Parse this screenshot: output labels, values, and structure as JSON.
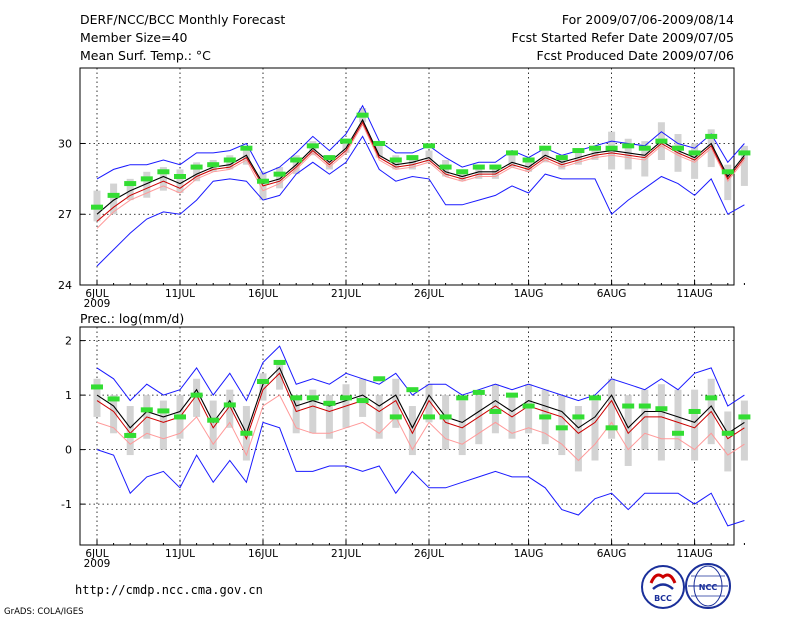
{
  "header": {
    "title": "DERF/NCC/BCC Monthly Forecast",
    "member_size": "Member Size=40",
    "for_range": "For 2009/07/06-2009/08/14",
    "fcst_started": "Fcst Started Refer Date 2009/07/05",
    "fcst_produced": "Fcst Produced Date 2009/07/06"
  },
  "footer": {
    "url": "http://cmdp.ncc.cma.gov.cn",
    "grads": "GrADS: COLA/IGES",
    "logo_bcc": "BCC",
    "logo_ncc": "NCC"
  },
  "colors": {
    "envelope": "#1a1aff",
    "mean": "#000000",
    "median": "#cc0000",
    "pink": "#ff9999",
    "box": "#d3d3d3",
    "marker": "#33dd33",
    "grid": "#000000"
  },
  "chart_data": [
    {
      "type": "line",
      "title": "Mean Surf. Temp.: °C",
      "x_tick_labels": [
        "6JUL",
        "11JUL",
        "16JUL",
        "21JUL",
        "26JUL",
        "1AUG",
        "6AUG",
        "11AUG"
      ],
      "x_tick_days": [
        1,
        6,
        11,
        16,
        21,
        27,
        32,
        37
      ],
      "x_year_label": "2009",
      "ylim": [
        24,
        33.2
      ],
      "yticks": [
        24,
        27,
        30
      ],
      "x_days": [
        1,
        2,
        3,
        4,
        5,
        6,
        7,
        8,
        9,
        10,
        11,
        12,
        13,
        14,
        15,
        16,
        17,
        18,
        19,
        20,
        21,
        22,
        23,
        24,
        25,
        26,
        27,
        28,
        29,
        30,
        31,
        32,
        33,
        34,
        35,
        36,
        37,
        38,
        39,
        40
      ],
      "series": [
        {
          "name": "max",
          "values": [
            28.5,
            28.9,
            29.1,
            29.1,
            29.3,
            29.1,
            29.6,
            29.6,
            29.7,
            30.0,
            28.7,
            29.0,
            29.6,
            30.3,
            29.7,
            30.4,
            31.6,
            30.1,
            29.6,
            29.6,
            29.9,
            29.4,
            29.0,
            29.2,
            29.2,
            29.7,
            29.4,
            29.8,
            29.5,
            29.7,
            29.9,
            30.1,
            30.0,
            29.9,
            30.5,
            30.0,
            29.8,
            30.4,
            29.2,
            30.0
          ]
        },
        {
          "name": "mean",
          "values": [
            27.0,
            27.6,
            28.0,
            28.3,
            28.6,
            28.3,
            28.7,
            29.0,
            29.1,
            29.5,
            28.3,
            28.5,
            29.1,
            29.8,
            29.2,
            29.8,
            31.0,
            29.5,
            29.1,
            29.2,
            29.4,
            28.8,
            28.6,
            28.8,
            28.8,
            29.2,
            29.0,
            29.5,
            29.2,
            29.4,
            29.6,
            29.7,
            29.6,
            29.5,
            30.1,
            29.7,
            29.4,
            30.0,
            28.6,
            29.5
          ]
        },
        {
          "name": "median",
          "values": [
            26.7,
            27.3,
            27.8,
            28.1,
            28.4,
            28.1,
            28.6,
            28.9,
            29.0,
            29.4,
            28.2,
            28.4,
            29.0,
            29.7,
            29.1,
            29.7,
            30.9,
            29.4,
            29.0,
            29.1,
            29.3,
            28.7,
            28.5,
            28.7,
            28.7,
            29.1,
            28.9,
            29.4,
            29.1,
            29.3,
            29.5,
            29.6,
            29.5,
            29.4,
            30.0,
            29.6,
            29.3,
            29.9,
            28.5,
            29.4
          ]
        },
        {
          "name": "pink",
          "values": [
            26.4,
            27.1,
            27.6,
            27.9,
            28.2,
            27.9,
            28.5,
            28.8,
            28.9,
            29.3,
            28.0,
            28.3,
            28.9,
            29.6,
            29.0,
            29.6,
            30.8,
            29.3,
            28.9,
            29.0,
            29.2,
            28.6,
            28.4,
            28.6,
            28.6,
            29.0,
            28.8,
            29.3,
            29.0,
            29.2,
            29.4,
            29.5,
            29.4,
            29.3,
            29.9,
            29.5,
            29.2,
            29.8,
            28.4,
            29.3
          ]
        },
        {
          "name": "min",
          "values": [
            24.8,
            25.5,
            26.2,
            26.8,
            27.1,
            27.0,
            27.6,
            28.4,
            28.5,
            28.4,
            27.6,
            27.8,
            28.7,
            29.2,
            28.7,
            29.2,
            30.3,
            28.9,
            28.4,
            28.6,
            28.5,
            27.4,
            27.4,
            27.6,
            27.8,
            28.2,
            27.9,
            28.7,
            28.5,
            28.5,
            28.5,
            27.0,
            27.6,
            28.1,
            28.6,
            28.3,
            27.8,
            28.5,
            27.0,
            27.4
          ]
        }
      ],
      "box_low": [
        26.7,
        27.0,
        27.6,
        27.7,
        28.0,
        27.9,
        28.4,
        28.8,
        28.9,
        29.1,
        27.6,
        28.1,
        28.7,
        29.5,
        28.9,
        29.6,
        30.9,
        29.4,
        28.9,
        28.9,
        29.2,
        28.6,
        28.4,
        28.5,
        28.5,
        29.0,
        28.8,
        29.2,
        28.9,
        29.1,
        29.3,
        28.9,
        28.9,
        28.6,
        29.3,
        28.8,
        28.5,
        29.0,
        27.6,
        28.2
      ],
      "box_high": [
        28.0,
        28.3,
        28.5,
        28.8,
        29.0,
        28.9,
        29.2,
        29.3,
        29.5,
        29.8,
        28.8,
        29.0,
        29.5,
        30.1,
        29.5,
        30.2,
        31.5,
        30.0,
        29.5,
        29.5,
        29.7,
        29.3,
        28.9,
        29.1,
        29.1,
        29.5,
        29.3,
        29.7,
        29.4,
        29.6,
        29.8,
        30.5,
        30.2,
        30.1,
        30.9,
        30.4,
        30.0,
        30.6,
        29.1,
        29.9
      ],
      "markers": [
        27.3,
        27.8,
        28.3,
        28.5,
        28.8,
        28.6,
        29.0,
        29.1,
        29.3,
        29.8,
        28.4,
        28.7,
        29.3,
        29.9,
        29.4,
        30.1,
        31.2,
        30.0,
        29.3,
        29.4,
        29.9,
        29.0,
        28.8,
        29.0,
        29.0,
        29.6,
        29.3,
        29.8,
        29.4,
        29.7,
        29.8,
        29.8,
        29.9,
        29.8,
        30.1,
        29.8,
        29.6,
        30.3,
        28.8,
        29.6
      ]
    },
    {
      "type": "line",
      "title": "Prec.: log(mm/d)",
      "x_tick_labels": [
        "6JUL",
        "11JUL",
        "16JUL",
        "21JUL",
        "26JUL",
        "1AUG",
        "6AUG",
        "11AUG"
      ],
      "x_tick_days": [
        1,
        6,
        11,
        16,
        21,
        27,
        32,
        37
      ],
      "x_year_label": "2009",
      "ylim": [
        -1.75,
        2.25
      ],
      "yticks": [
        -1,
        0,
        1,
        2
      ],
      "x_days": [
        1,
        2,
        3,
        4,
        5,
        6,
        7,
        8,
        9,
        10,
        11,
        12,
        13,
        14,
        15,
        16,
        17,
        18,
        19,
        20,
        21,
        22,
        23,
        24,
        25,
        26,
        27,
        28,
        29,
        30,
        31,
        32,
        33,
        34,
        35,
        36,
        37,
        38,
        39,
        40
      ],
      "series": [
        {
          "name": "max",
          "values": [
            1.5,
            1.3,
            0.9,
            1.2,
            1.0,
            1.1,
            1.5,
            1.0,
            1.4,
            0.9,
            1.6,
            1.9,
            1.2,
            1.3,
            1.2,
            1.4,
            1.3,
            1.2,
            1.4,
            1.0,
            1.2,
            1.2,
            1.0,
            1.1,
            1.2,
            1.1,
            1.2,
            1.1,
            1.0,
            0.9,
            1.0,
            1.3,
            1.2,
            1.1,
            1.3,
            1.1,
            1.4,
            1.5,
            0.8,
            1.0
          ]
        },
        {
          "name": "mean",
          "values": [
            1.0,
            0.8,
            0.4,
            0.7,
            0.6,
            0.7,
            1.1,
            0.5,
            0.9,
            0.3,
            1.2,
            1.5,
            0.8,
            0.9,
            0.8,
            0.9,
            1.0,
            0.8,
            1.0,
            0.4,
            1.0,
            0.6,
            0.5,
            0.7,
            0.9,
            0.7,
            0.9,
            0.8,
            0.7,
            0.4,
            0.6,
            1.0,
            0.4,
            0.7,
            0.7,
            0.6,
            0.5,
            0.8,
            0.3,
            0.5
          ]
        },
        {
          "name": "median",
          "values": [
            0.9,
            0.7,
            0.3,
            0.6,
            0.5,
            0.6,
            1.0,
            0.4,
            0.8,
            0.2,
            1.1,
            1.4,
            0.7,
            0.8,
            0.7,
            0.8,
            0.9,
            0.7,
            0.9,
            0.3,
            0.9,
            0.5,
            0.4,
            0.6,
            0.8,
            0.6,
            0.8,
            0.7,
            0.6,
            0.3,
            0.5,
            0.9,
            0.3,
            0.6,
            0.6,
            0.5,
            0.4,
            0.7,
            0.2,
            0.4
          ]
        },
        {
          "name": "pink",
          "values": [
            0.5,
            0.4,
            0.1,
            0.3,
            0.2,
            0.3,
            0.6,
            0.1,
            0.5,
            -0.1,
            0.8,
            1.0,
            0.4,
            0.3,
            0.3,
            0.4,
            0.5,
            0.3,
            0.6,
            0.0,
            0.5,
            0.2,
            0.1,
            0.3,
            0.5,
            0.3,
            0.4,
            0.3,
            0.1,
            -0.2,
            0.1,
            0.5,
            0.0,
            0.3,
            0.2,
            0.2,
            0.0,
            0.3,
            -0.1,
            0.1
          ]
        },
        {
          "name": "min",
          "values": [
            0.0,
            -0.1,
            -0.8,
            -0.5,
            -0.4,
            -0.7,
            -0.1,
            -0.6,
            -0.2,
            -0.6,
            0.5,
            0.4,
            -0.4,
            -0.4,
            -0.3,
            -0.3,
            -0.4,
            -0.3,
            -0.8,
            -0.4,
            -0.7,
            -0.7,
            -0.6,
            -0.5,
            -0.4,
            -0.5,
            -0.5,
            -0.7,
            -1.1,
            -1.2,
            -0.9,
            -0.8,
            -1.1,
            -0.8,
            -0.8,
            -0.8,
            -1.0,
            -0.8,
            -1.4,
            -1.3
          ]
        },
        {
          "name": "marker_dummy",
          "values": []
        }
      ],
      "box_low": [
        0.6,
        0.3,
        -0.1,
        0.2,
        0.0,
        0.2,
        0.6,
        0.0,
        0.4,
        -0.2,
        0.9,
        1.1,
        0.3,
        0.3,
        0.2,
        0.4,
        0.6,
        0.2,
        0.4,
        -0.1,
        0.5,
        0.0,
        -0.1,
        0.1,
        0.3,
        0.2,
        0.3,
        0.1,
        -0.1,
        -0.4,
        -0.2,
        0.2,
        -0.3,
        0.0,
        -0.2,
        0.0,
        -0.2,
        0.1,
        -0.4,
        -0.2
      ],
      "box_high": [
        1.3,
        1.0,
        0.8,
        1.0,
        0.9,
        1.0,
        1.3,
        0.9,
        1.1,
        0.8,
        1.4,
        1.6,
        1.0,
        1.1,
        1.0,
        1.2,
        1.3,
        1.0,
        1.3,
        0.8,
        1.2,
        1.0,
        0.9,
        1.0,
        1.2,
        1.0,
        1.2,
        1.1,
        1.0,
        0.8,
        0.9,
        1.3,
        1.0,
        1.1,
        1.2,
        1.1,
        1.1,
        1.3,
        0.7,
        0.9
      ],
      "markers": [
        1.15,
        0.93,
        0.26,
        0.73,
        0.71,
        0.6,
        1.0,
        0.54,
        0.82,
        0.3,
        1.25,
        1.6,
        0.95,
        0.95,
        0.85,
        0.95,
        0.9,
        1.3,
        0.6,
        1.1,
        0.6,
        0.6,
        0.95,
        1.05,
        0.7,
        1.0,
        0.8,
        0.6,
        0.4,
        0.6,
        0.95,
        0.4,
        0.8,
        0.8,
        0.75,
        0.3,
        0.7,
        0.95,
        0.3,
        0.6
      ]
    }
  ]
}
